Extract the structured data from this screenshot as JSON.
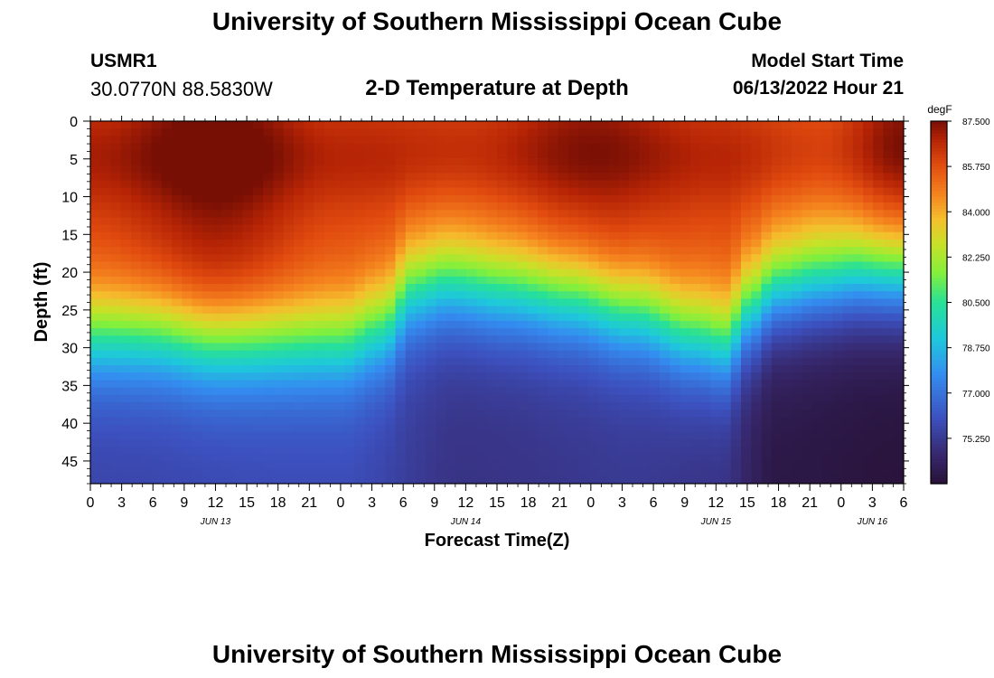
{
  "header": {
    "title": "University of Southern Mississippi Ocean Cube",
    "station": "USMR1",
    "coords": "30.0770N  88.5830W",
    "subtitle": "2-D Temperature at Depth",
    "model_start_label": "Model Start Time",
    "model_start_value": "06/13/2022 Hour 21"
  },
  "footer": {
    "title": "University of Southern Mississippi Ocean Cube"
  },
  "chart_data": {
    "type": "heatmap",
    "title": "2-D Temperature at Depth",
    "xlabel": "Forecast Time(Z)",
    "ylabel": "Depth (ft)",
    "x_hour_range": [
      0,
      78
    ],
    "x_tick_labels": [
      "0",
      "3",
      "6",
      "9",
      "12",
      "15",
      "18",
      "21",
      "0",
      "3",
      "6",
      "9",
      "12",
      "15",
      "18",
      "21",
      "0",
      "3",
      "6",
      "9",
      "12",
      "15",
      "18",
      "21",
      "0",
      "3",
      "6"
    ],
    "x_tick_step_hours": 3,
    "date_labels": [
      {
        "label": "JUN 13",
        "hour": 12
      },
      {
        "label": "JUN 14",
        "hour": 36
      },
      {
        "label": "JUN 15",
        "hour": 60
      },
      {
        "label": "JUN 16",
        "hour": 75
      }
    ],
    "ylim": [
      0,
      48
    ],
    "y_ticks": [
      0,
      5,
      10,
      15,
      20,
      25,
      30,
      35,
      40,
      45
    ],
    "colorbar": {
      "unit": "degF",
      "range": [
        73.5,
        87.5
      ],
      "tick_labels": [
        "87.500",
        "85.750",
        "84.000",
        "82.250",
        "80.500",
        "78.750",
        "77.000",
        "75.250"
      ],
      "tick_values": [
        87.5,
        85.75,
        84.0,
        82.25,
        80.5,
        78.75,
        77.0,
        75.25
      ]
    },
    "thermocline_depth_ft": [
      {
        "hour": 0,
        "depth": 22
      },
      {
        "hour": 6,
        "depth": 22
      },
      {
        "hour": 12,
        "depth": 23
      },
      {
        "hour": 18,
        "depth": 23
      },
      {
        "hour": 24,
        "depth": 23
      },
      {
        "hour": 28,
        "depth": 21
      },
      {
        "hour": 31,
        "depth": 16
      },
      {
        "hour": 34,
        "depth": 15
      },
      {
        "hour": 40,
        "depth": 16
      },
      {
        "hour": 46,
        "depth": 17
      },
      {
        "hour": 52,
        "depth": 19
      },
      {
        "hour": 58,
        "depth": 22
      },
      {
        "hour": 61,
        "depth": 23
      },
      {
        "hour": 63,
        "depth": 19
      },
      {
        "hour": 66,
        "depth": 16
      },
      {
        "hour": 70,
        "depth": 15
      },
      {
        "hour": 74,
        "depth": 14
      },
      {
        "hour": 78,
        "depth": 14
      }
    ],
    "surface_temperature_degF": [
      {
        "hour": 0,
        "value": 86.2
      },
      {
        "hour": 12,
        "value": 87.3
      },
      {
        "hour": 24,
        "value": 86.0
      },
      {
        "hour": 36,
        "value": 85.9
      },
      {
        "hour": 48,
        "value": 86.8
      },
      {
        "hour": 60,
        "value": 86.0
      },
      {
        "hour": 70,
        "value": 85.5
      },
      {
        "hour": 78,
        "value": 87.0
      }
    ],
    "bottom_temperature_degF": [
      {
        "hour": 0,
        "value": 75.6
      },
      {
        "hour": 24,
        "value": 75.8
      },
      {
        "hour": 36,
        "value": 75.0
      },
      {
        "hour": 52,
        "value": 75.2
      },
      {
        "hour": 60,
        "value": 75.0
      },
      {
        "hour": 66,
        "value": 73.8
      },
      {
        "hour": 78,
        "value": 73.6
      }
    ]
  }
}
